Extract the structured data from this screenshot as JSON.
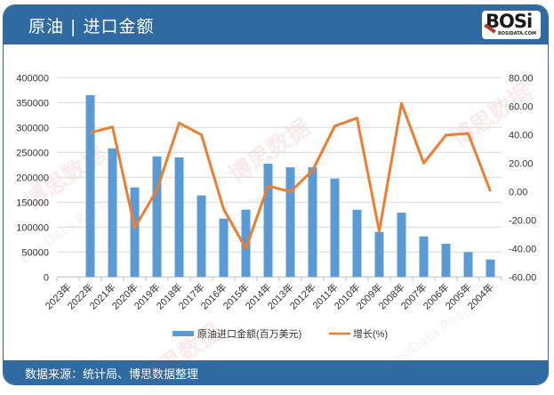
{
  "header": {
    "title": "原油 | 进口金额",
    "logo_text": "BOSi",
    "logo_subtext": "BOSIDATA.COM"
  },
  "footer": {
    "source": "数据来源：统计局、博思数据整理"
  },
  "watermark": {
    "cn": "博思数据",
    "en": "BosiData Research"
  },
  "colors": {
    "brand": "#2f6aa3",
    "bar": "#5b9bd5",
    "line": "#ed7d31",
    "grid": "#d9d9d9"
  },
  "chart_data": {
    "type": "bar+line",
    "title": "原油 | 进口金额",
    "categories": [
      "2023年",
      "2022年",
      "2021年",
      "2020年",
      "2019年",
      "2018年",
      "2017年",
      "2016年",
      "2015年",
      "2014年",
      "2013年",
      "2012年",
      "2011年",
      "2010年",
      "2009年",
      "2008年",
      "2007年",
      "2006年",
      "2005年",
      "2004年"
    ],
    "series": [
      {
        "name": "原油进口金额(百万美元)",
        "type": "bar",
        "axis": "left",
        "values": [
          null,
          365000,
          258000,
          179600,
          242000,
          240000,
          163600,
          117000,
          135000,
          227300,
          220000,
          220000,
          197500,
          135000,
          90400,
          129000,
          81400,
          66600,
          50000,
          35000
        ]
      },
      {
        "name": "增长(%)",
        "type": "line",
        "axis": "right",
        "values": [
          null,
          41.4,
          45.4,
          -25.4,
          1.2,
          48.1,
          39.8,
          -12.3,
          -40.0,
          4.0,
          -0.2,
          14.8,
          46.0,
          51.6,
          -27.9,
          62.0,
          20.0,
          39.6,
          40.8,
          0.2
        ]
      }
    ],
    "y_left": {
      "min": 0,
      "max": 400000,
      "step": 50000,
      "ticks": [
        "0",
        "50000",
        "100000",
        "150000",
        "200000",
        "250000",
        "300000",
        "350000",
        "400000"
      ]
    },
    "y_right": {
      "min": -60,
      "max": 80,
      "step": 20,
      "ticks": [
        "-60.00",
        "-40.00",
        "-20.00",
        "0.00",
        "20.00",
        "40.00",
        "60.00",
        "80.00"
      ]
    },
    "grid": true,
    "legend": {
      "position": "bottom",
      "entries": [
        "原油进口金额(百万美元)",
        "增长(%)"
      ]
    }
  }
}
